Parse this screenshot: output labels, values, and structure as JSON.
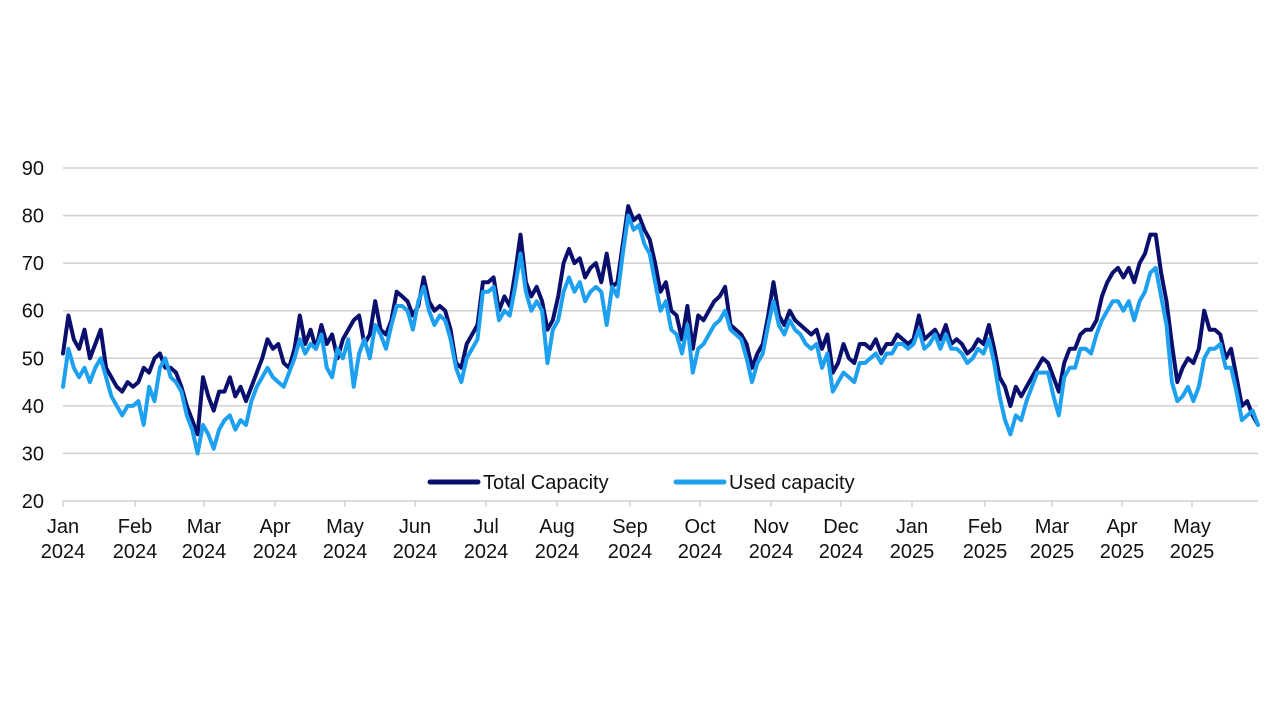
{
  "chart_data": {
    "type": "line",
    "title": "",
    "xlabel": "",
    "ylabel": "",
    "ylim": [
      20,
      90
    ],
    "yticks": [
      20,
      30,
      40,
      50,
      60,
      70,
      80,
      90
    ],
    "grid": true,
    "legend_position": "bottom-center (inside plot)",
    "x_start": "2024-01-01",
    "x_end": "2025-05-30",
    "x_interval": "weekly",
    "xtick_labels": [
      {
        "month": "Jan",
        "year": "2024",
        "index": 0
      },
      {
        "month": "Feb",
        "year": "2024",
        "index": 1
      },
      {
        "month": "Mar",
        "year": "2024",
        "index": 2
      },
      {
        "month": "Apr",
        "year": "2024",
        "index": 3
      },
      {
        "month": "May",
        "year": "2024",
        "index": 4
      },
      {
        "month": "Jun",
        "year": "2024",
        "index": 5
      },
      {
        "month": "Jul",
        "year": "2024",
        "index": 6
      },
      {
        "month": "Aug",
        "year": "2024",
        "index": 7
      },
      {
        "month": "Sep",
        "year": "2024",
        "index": 8
      },
      {
        "month": "Oct",
        "year": "2024",
        "index": 9
      },
      {
        "month": "Nov",
        "year": "2024",
        "index": 10
      },
      {
        "month": "Dec",
        "year": "2024",
        "index": 11
      },
      {
        "month": "Jan",
        "year": "2025",
        "index": 12
      },
      {
        "month": "Feb",
        "year": "2025",
        "index": 13
      },
      {
        "month": "Mar",
        "year": "2025",
        "index": 14
      },
      {
        "month": "Apr",
        "year": "2025",
        "index": 15
      },
      {
        "month": "May",
        "year": "2025",
        "index": 16
      }
    ],
    "series": [
      {
        "name": "Total Capacity",
        "color": "#0a0f6e",
        "values": [
          51,
          59,
          54,
          52,
          56,
          50,
          53,
          56,
          48,
          46,
          44,
          43,
          45,
          44,
          45,
          48,
          47,
          50,
          51,
          48,
          48,
          47,
          44,
          40,
          37,
          34,
          46,
          42,
          39,
          43,
          43,
          46,
          42,
          44,
          41,
          44,
          47,
          50,
          54,
          52,
          53,
          49,
          48,
          52,
          59,
          53,
          56,
          52,
          57,
          53,
          55,
          50,
          54,
          56,
          58,
          59,
          53,
          55,
          62,
          56,
          55,
          58,
          64,
          63,
          62,
          59,
          61,
          67,
          62,
          60,
          61,
          60,
          56,
          49,
          48,
          53,
          55,
          57,
          66,
          66,
          67,
          60,
          63,
          61,
          68,
          76,
          66,
          63,
          65,
          62,
          56,
          58,
          63,
          70,
          73,
          70,
          71,
          67,
          69,
          70,
          66,
          72,
          65,
          66,
          74,
          82,
          79,
          80,
          77,
          75,
          70,
          64,
          66,
          60,
          59,
          54,
          61,
          52,
          59,
          58,
          60,
          62,
          63,
          65,
          57,
          56,
          55,
          53,
          48,
          51,
          53,
          59,
          66,
          59,
          57,
          60,
          58,
          57,
          56,
          55,
          56,
          52,
          55,
          47,
          49,
          53,
          50,
          49,
          53,
          53,
          52,
          54,
          51,
          53,
          53,
          55,
          54,
          53,
          54,
          59,
          54,
          55,
          56,
          54,
          57,
          53,
          54,
          53,
          51,
          52,
          54,
          53,
          57,
          52,
          46,
          44,
          40,
          44,
          42,
          44,
          46,
          48,
          50,
          49,
          46,
          43,
          49,
          52,
          52,
          55,
          56,
          56,
          58,
          63,
          66,
          68,
          69,
          67,
          69,
          66,
          70,
          72,
          76,
          76,
          68,
          62,
          53,
          45,
          48,
          50,
          49,
          52,
          60,
          56,
          56,
          55,
          50,
          52,
          46,
          40,
          41,
          38,
          36
        ]
      },
      {
        "name": "Used capacity",
        "color": "#1ea0f0",
        "values": [
          44,
          52,
          48,
          46,
          48,
          45,
          48,
          50,
          46,
          42,
          40,
          38,
          40,
          40,
          41,
          36,
          44,
          41,
          48,
          50,
          46,
          45,
          43,
          38,
          35,
          30,
          36,
          34,
          31,
          35,
          37,
          38,
          35,
          37,
          36,
          41,
          44,
          46,
          48,
          46,
          45,
          44,
          47,
          50,
          54,
          51,
          53,
          52,
          55,
          48,
          46,
          52,
          50,
          54,
          44,
          51,
          54,
          50,
          57,
          55,
          52,
          57,
          61,
          61,
          60,
          56,
          62,
          65,
          60,
          57,
          59,
          58,
          54,
          48,
          45,
          50,
          52,
          54,
          64,
          64,
          65,
          58,
          60,
          59,
          65,
          72,
          64,
          60,
          62,
          60,
          49,
          56,
          58,
          64,
          67,
          64,
          66,
          62,
          64,
          65,
          64,
          57,
          65,
          63,
          72,
          80,
          77,
          78,
          74,
          72,
          66,
          60,
          62,
          56,
          55,
          51,
          57,
          47,
          52,
          53,
          55,
          57,
          58,
          60,
          56,
          55,
          54,
          50,
          45,
          49,
          51,
          57,
          62,
          57,
          55,
          58,
          56,
          55,
          53,
          52,
          53,
          48,
          51,
          43,
          45,
          47,
          46,
          45,
          49,
          49,
          50,
          51,
          49,
          51,
          51,
          53,
          53,
          52,
          53,
          56,
          52,
          53,
          55,
          52,
          55,
          52,
          52,
          51,
          49,
          50,
          52,
          51,
          54,
          49,
          42,
          37,
          34,
          38,
          37,
          41,
          44,
          47,
          47,
          47,
          42,
          38,
          46,
          48,
          48,
          52,
          52,
          51,
          55,
          58,
          60,
          62,
          62,
          60,
          62,
          58,
          62,
          64,
          68,
          69,
          63,
          57,
          45,
          41,
          42,
          44,
          41,
          44,
          50,
          52,
          52,
          53,
          48,
          48,
          43,
          37,
          38,
          39,
          36
        ]
      }
    ]
  }
}
